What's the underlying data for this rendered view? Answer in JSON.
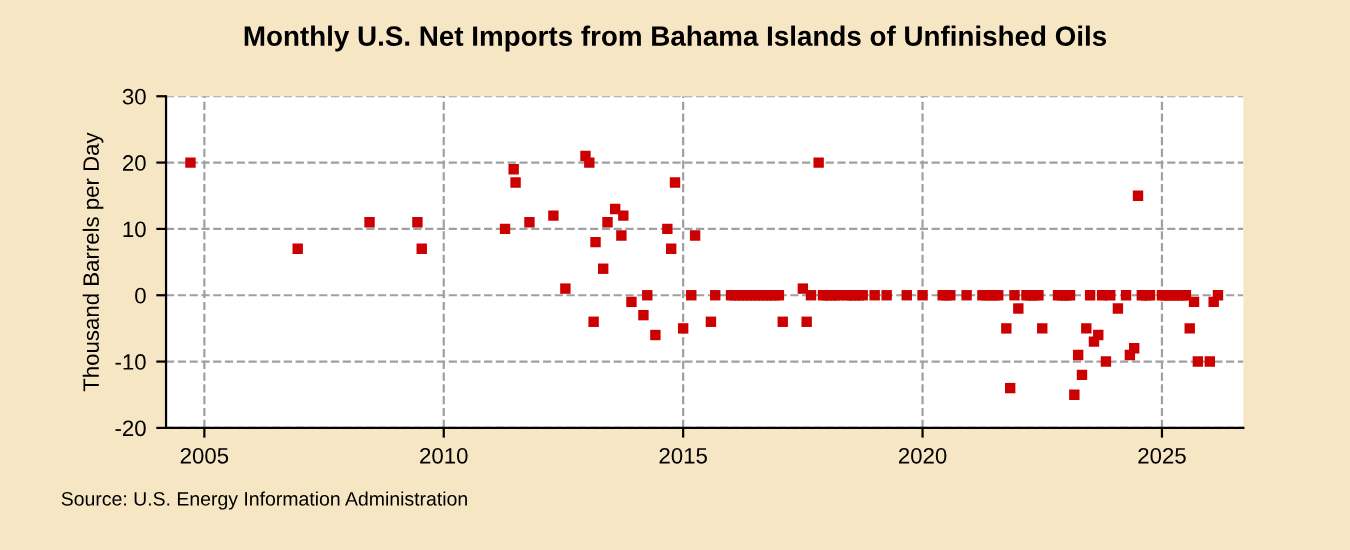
{
  "chart_data": {
    "type": "scatter",
    "title": "Monthly U.S. Net Imports from Bahama Islands of Unfinished Oils",
    "ylabel": "Thousand Barrels per Day",
    "annotations": [
      "Source: U.S. Energy Information Administration"
    ],
    "series": [
      {
        "color": "#cc0000",
        "x": [
          2004.71,
          2006.95,
          2008.45,
          2009.45,
          2009.54,
          2011.28,
          2011.46,
          2011.5,
          2011.79,
          2012.29,
          2012.54,
          2012.96,
          2013.04,
          2013.13,
          2013.17,
          2013.33,
          2013.42,
          2013.58,
          2013.71,
          2013.75,
          2013.92,
          2014.17,
          2014.25,
          2014.42,
          2014.67,
          2014.75,
          2014.83,
          2015.0,
          2015.17,
          2015.25,
          2015.58,
          2015.67,
          2016.0,
          2016.08,
          2016.17,
          2016.25,
          2016.33,
          2016.42,
          2016.5,
          2016.58,
          2016.67,
          2016.75,
          2016.83,
          2016.92,
          2017.0,
          2017.08,
          2017.5,
          2017.58,
          2017.67,
          2017.83,
          2017.92,
          2018.0,
          2018.08,
          2018.17,
          2018.25,
          2018.42,
          2018.5,
          2018.58,
          2018.67,
          2018.75,
          2019.0,
          2019.25,
          2019.67,
          2020.0,
          2020.42,
          2020.5,
          2020.58,
          2020.92,
          2021.25,
          2021.33,
          2021.42,
          2021.5,
          2021.58,
          2021.75,
          2021.83,
          2021.92,
          2022.0,
          2022.17,
          2022.25,
          2022.33,
          2022.42,
          2022.5,
          2022.83,
          2022.92,
          2023.0,
          2023.08,
          2023.17,
          2023.25,
          2023.33,
          2023.42,
          2023.5,
          2023.58,
          2023.67,
          2023.75,
          2023.83,
          2023.92,
          2024.08,
          2024.25,
          2024.33,
          2024.42,
          2024.5,
          2024.58,
          2024.67,
          2024.75,
          2025.0,
          2025.08,
          2025.17,
          2025.25,
          2025.33,
          2025.42,
          2025.5,
          2025.58,
          2025.67,
          2025.75,
          2026.0,
          2026.08,
          2026.17
        ],
        "values": [
          20,
          7,
          11,
          11,
          7,
          10,
          19,
          17,
          11,
          12,
          1,
          21,
          20,
          -4,
          8,
          4,
          11,
          13,
          9,
          12,
          -1,
          -3,
          0,
          -6,
          10,
          7,
          17,
          -5,
          0,
          9,
          -4,
          0,
          0,
          0,
          0,
          0,
          0,
          0,
          0,
          0,
          0,
          0,
          0,
          0,
          0,
          -4,
          1,
          -4,
          0,
          20,
          0,
          0,
          0,
          0,
          0,
          0,
          0,
          0,
          0,
          0,
          0,
          0,
          0,
          0,
          0,
          0,
          0,
          0,
          0,
          0,
          0,
          0,
          0,
          -5,
          -14,
          0,
          -2,
          0,
          0,
          0,
          0,
          -5,
          0,
          0,
          0,
          0,
          -15,
          -9,
          -12,
          -5,
          0,
          -7,
          -6,
          0,
          -10,
          0,
          -2,
          0,
          -9,
          -8,
          15,
          0,
          0,
          0,
          0,
          0,
          0,
          0,
          0,
          0,
          0,
          -5,
          -1,
          -10,
          -10,
          -1,
          0
        ]
      }
    ],
    "xlim": [
      2004.2,
      2026.7
    ],
    "xticks": [
      2005,
      2010,
      2015,
      2020,
      2025
    ],
    "ylim": [
      -20,
      30
    ],
    "yticks": [
      -20,
      -10,
      0,
      10,
      20,
      30
    ],
    "grid": true,
    "marker": "square"
  }
}
